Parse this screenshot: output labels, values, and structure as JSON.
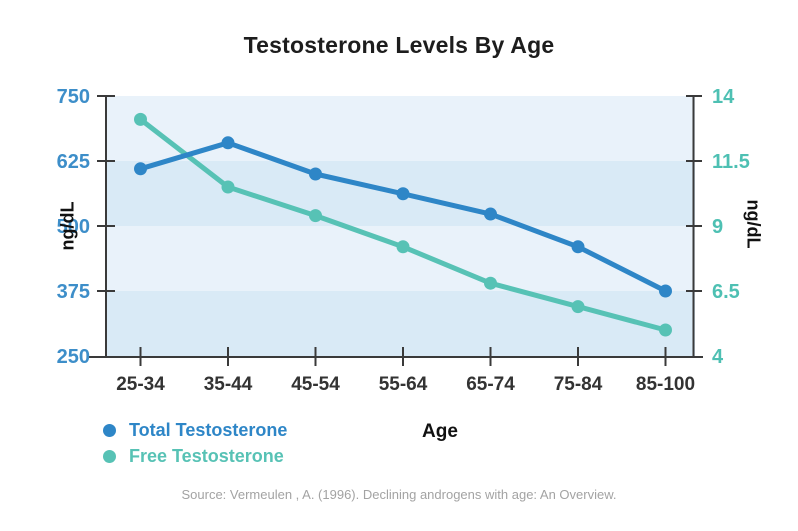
{
  "title": "Testosterone Levels By Age",
  "source": {
    "text": "Source: Vermeulen , A. (1996). Declining androgens with age: An Overview."
  },
  "chart_data": {
    "type": "line",
    "title": "Testosterone Levels By Age",
    "xlabel": "Age",
    "categories": [
      "25-34",
      "35-44",
      "45-54",
      "55-64",
      "65-74",
      "75-84",
      "85-100"
    ],
    "series": [
      {
        "name": "Total Testosterone",
        "axis": "left",
        "color": "#2e86c7",
        "values": [
          610,
          660,
          600,
          562,
          523,
          460,
          375
        ]
      },
      {
        "name": "Free Testosterone",
        "axis": "right",
        "color": "#57c2b5",
        "values": [
          13.1,
          10.5,
          9.4,
          8.2,
          6.8,
          5.9,
          5.0
        ]
      }
    ],
    "left_axis": {
      "label": "ng/dL",
      "ticks": [
        750,
        625,
        500,
        375,
        250
      ],
      "min": 250,
      "max": 750,
      "tick_color": "#3d8ec9"
    },
    "right_axis": {
      "label": "ng/dL",
      "ticks": [
        14,
        11.5,
        9,
        6.5,
        4
      ],
      "min": 4,
      "max": 14,
      "tick_color": "#4ec0b3"
    },
    "x_axis": {
      "tick_color": "#333333"
    },
    "axis_line_color": "#3a3a3a",
    "plot_bands": [
      "#e9f2fa",
      "#d9eaf6"
    ],
    "grid": false,
    "legend_position": "bottom-left"
  }
}
